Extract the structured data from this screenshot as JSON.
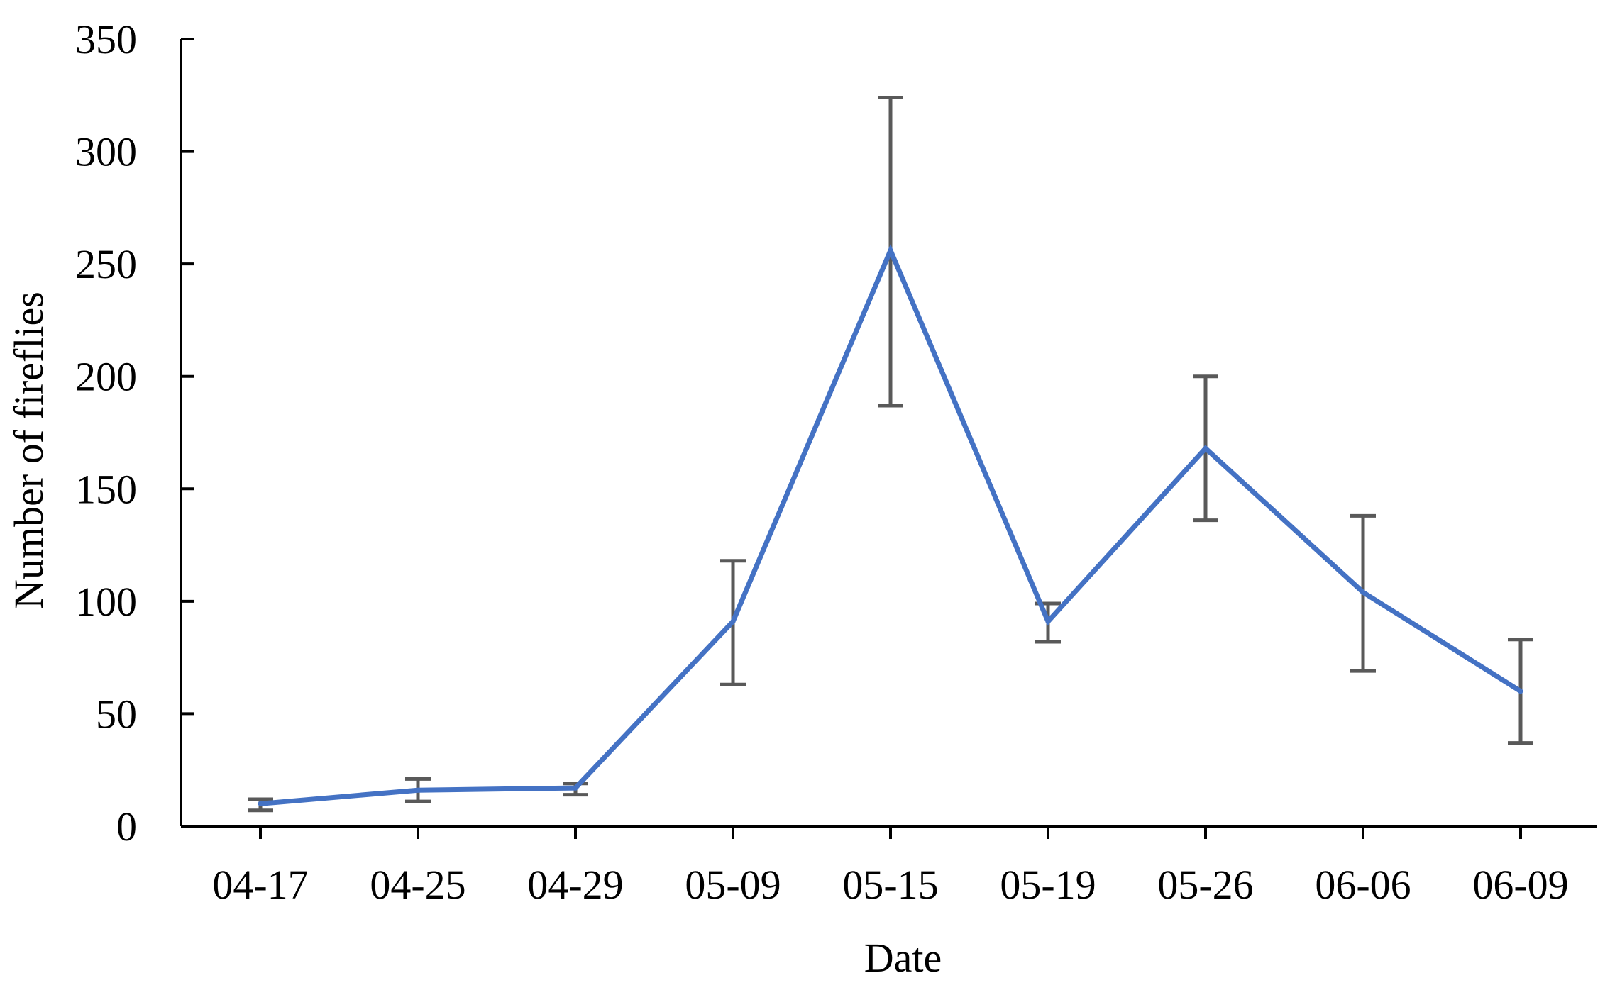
{
  "chart_data": {
    "type": "line",
    "title": "",
    "xlabel": "Date",
    "ylabel": "Number of fireflies",
    "categories": [
      "04-17",
      "04-25",
      "04-29",
      "05-09",
      "05-15",
      "05-19",
      "05-26",
      "06-06",
      "06-09"
    ],
    "series": [
      {
        "values": [
          10,
          16,
          17,
          91,
          256,
          91,
          168,
          104,
          60
        ],
        "error_low": [
          7,
          11,
          14,
          63,
          187,
          82,
          136,
          69,
          37
        ],
        "error_high": [
          12,
          21,
          19,
          118,
          324,
          99,
          200,
          138,
          83
        ]
      }
    ],
    "ylim": [
      0,
      350
    ],
    "yticks": [
      0,
      50,
      100,
      150,
      200,
      250,
      300,
      350
    ],
    "grid": false,
    "legend": "none",
    "colors": {
      "line": "#4472c4",
      "error_bar": "#595959",
      "axis": "#000000"
    }
  }
}
